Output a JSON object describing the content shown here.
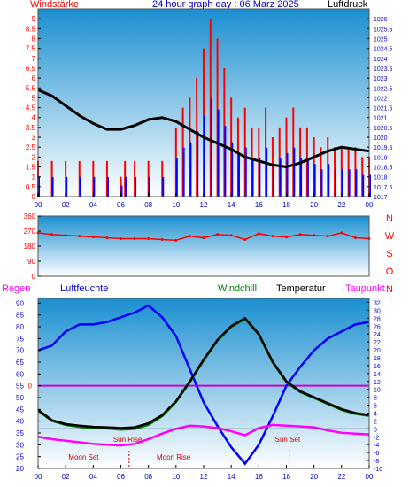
{
  "header": {
    "left": "Windstärke",
    "title": "24 hour graph day : 06 Marz 2025",
    "right": "Luftdruck"
  },
  "panel3_labels": {
    "regen": "Regen",
    "luftfeuchte": "Luftfeuchte",
    "windchill": "Windchill",
    "temperatur": "Temperatur",
    "taupunkt": "Taupunkt"
  },
  "annotations": {
    "sun_rise": "Sun Rise",
    "sun_set": "Sun Set",
    "moon_set": "Moon Set",
    "moon_rise": "Moon Rise",
    "regen_zero": "0"
  },
  "compass": [
    "N",
    "W",
    "S",
    "O",
    "N"
  ],
  "colors": {
    "wind_gust": "#ff0000",
    "wind_avg": "#0000ff",
    "pressure": "#000000",
    "wind_dir": "#ff0000",
    "humidity": "#0000ff",
    "temperature": "#000000",
    "windchill": "#008000",
    "dewpoint": "#ff00ff",
    "rain": "#cc00cc",
    "axis_text_left": "#ff0000",
    "axis_text_right": "#0000cc",
    "bg_top": "#1a8fd0",
    "bg_bottom": "#ffffff"
  },
  "chart_data": [
    {
      "type": "bar",
      "x_ticks": [
        "00",
        "02",
        "04",
        "06",
        "08",
        "10",
        "12",
        "14",
        "16",
        "18",
        "20",
        "22",
        "00"
      ],
      "y_left_ticks": [
        "0",
        "0.5",
        "1",
        "1.5",
        "2",
        "2.5",
        "3",
        "3.5",
        "4",
        "4.5",
        "5",
        "5.5",
        "6",
        "6.5",
        "7",
        "7.5",
        "8",
        "8.5",
        "9"
      ],
      "y_right_ticks": [
        "1017",
        "1017.5",
        "1018",
        "1018.5",
        "1019",
        "1019.5",
        "1020",
        "1020.5",
        "1021",
        "1021.5",
        "1022",
        "1022.5",
        "1023",
        "1023.5",
        "1024",
        "1024.5",
        "1025",
        "1025.5",
        "1026"
      ],
      "ylim_left": [
        0,
        9.5
      ],
      "ylim_right": [
        1017,
        1026.5
      ],
      "series": [
        {
          "name": "Windstärke",
          "axis": "left",
          "x": [
            0,
            1,
            2,
            3,
            4,
            5,
            6,
            6.3,
            7,
            8,
            9,
            10,
            10.5,
            11,
            11.5,
            12,
            12.5,
            13,
            13.5,
            14,
            14.5,
            15,
            15.5,
            16,
            16.5,
            17,
            17.5,
            18,
            18.5,
            19,
            19.5,
            20,
            20.5,
            21,
            21.5,
            22,
            22.5,
            23,
            23.5,
            24
          ],
          "values": [
            1.8,
            1.8,
            1.8,
            1.8,
            1.8,
            1.8,
            1.0,
            1.8,
            1.8,
            1.8,
            1.8,
            3.5,
            4.5,
            5.0,
            6.0,
            7.5,
            9.0,
            8.0,
            6.5,
            5.0,
            4.0,
            4.5,
            3.5,
            3.5,
            4.5,
            3.0,
            3.5,
            4.0,
            4.5,
            3.5,
            3.5,
            3.0,
            2.5,
            3.0,
            2.5,
            2.5,
            2.5,
            2.5,
            2.0,
            2.0
          ]
        },
        {
          "name": "Luftdruck",
          "axis": "right",
          "x": [
            0,
            1,
            2,
            3,
            4,
            5,
            6,
            7,
            8,
            9,
            10,
            11,
            12,
            13,
            14,
            15,
            16,
            17,
            18,
            19,
            20,
            21,
            22,
            23,
            24
          ],
          "values": [
            1022.4,
            1022.1,
            1021.6,
            1021.1,
            1020.7,
            1020.4,
            1020.4,
            1020.6,
            1020.9,
            1021.0,
            1020.8,
            1020.4,
            1020.0,
            1019.7,
            1019.4,
            1019.0,
            1018.8,
            1018.6,
            1018.5,
            1018.7,
            1019.0,
            1019.3,
            1019.5,
            1019.4,
            1019.3
          ]
        }
      ]
    },
    {
      "type": "scatter",
      "x_ticks": [],
      "y_ticks": [
        "0",
        "90",
        "180",
        "270",
        "360"
      ],
      "ylim": [
        0,
        360
      ],
      "series": [
        {
          "name": "Windrichtung",
          "x": [
            0,
            1,
            2,
            3,
            4,
            5,
            6,
            7,
            8,
            9,
            10,
            11,
            12,
            13,
            14,
            15,
            16,
            17,
            18,
            19,
            20,
            21,
            22,
            23,
            24
          ],
          "values": [
            260,
            250,
            245,
            240,
            235,
            230,
            225,
            225,
            225,
            220,
            215,
            240,
            230,
            250,
            245,
            220,
            255,
            240,
            235,
            250,
            245,
            240,
            260,
            230,
            225
          ]
        }
      ]
    },
    {
      "type": "line",
      "x_ticks": [
        "00",
        "02",
        "04",
        "06",
        "08",
        "10",
        "12",
        "14",
        "16",
        "18",
        "20",
        "22",
        "00"
      ],
      "y_left_ticks": [
        "20",
        "25",
        "30",
        "35",
        "40",
        "45",
        "50",
        "55",
        "60",
        "65",
        "70",
        "75",
        "80",
        "85",
        "90"
      ],
      "y_right_ticks": [
        "-10",
        "-8",
        "-6",
        "-4",
        "-2",
        "0",
        "2",
        "4",
        "6",
        "8",
        "10",
        "12",
        "14",
        "16",
        "18",
        "20",
        "22",
        "24",
        "26",
        "28",
        "30",
        "32"
      ],
      "ylim_left": [
        20,
        92
      ],
      "ylim_right": [
        -10,
        33
      ],
      "series": [
        {
          "name": "Luftfeuchte",
          "axis": "left",
          "x": [
            0,
            1,
            2,
            3,
            4,
            5,
            6,
            7,
            8,
            9,
            10,
            11,
            12,
            13,
            14,
            15,
            16,
            17,
            18,
            19,
            20,
            21,
            22,
            23,
            24
          ],
          "values": [
            70,
            72,
            78,
            81,
            81,
            82,
            84,
            86,
            89,
            84,
            76,
            62,
            48,
            38,
            29,
            22,
            30,
            42,
            55,
            63,
            70,
            75,
            78,
            81,
            82
          ]
        },
        {
          "name": "Temperatur",
          "axis": "right",
          "x": [
            0,
            1,
            2,
            3,
            4,
            5,
            6,
            7,
            8,
            9,
            10,
            11,
            12,
            13,
            14,
            15,
            16,
            17,
            18,
            19,
            20,
            21,
            22,
            23,
            24
          ],
          "values": [
            4.8,
            2.2,
            1.2,
            0.8,
            0.5,
            0.4,
            0.2,
            0.4,
            1.4,
            3.5,
            7.0,
            12.0,
            17.5,
            22.5,
            26.0,
            28.0,
            24.0,
            17.0,
            12.0,
            9.5,
            8.0,
            6.5,
            5.0,
            4.0,
            3.5
          ]
        },
        {
          "name": "Windchill",
          "axis": "right",
          "x": [
            0,
            1,
            2,
            3,
            4,
            5,
            6,
            7,
            8,
            9,
            10,
            11,
            12,
            13,
            14,
            15,
            16,
            17,
            18,
            19,
            20,
            21,
            22,
            23,
            24
          ],
          "values": [
            4.6,
            2.0,
            1.0,
            0.5,
            0.2,
            0.1,
            -0.2,
            0.0,
            1.0,
            3.2,
            6.8,
            11.8,
            17.3,
            22.3,
            25.8,
            27.8,
            23.8,
            16.8,
            11.8,
            9.3,
            7.8,
            6.3,
            4.8,
            3.8,
            3.3
          ]
        },
        {
          "name": "Taupunkt",
          "axis": "right",
          "x": [
            0,
            1,
            2,
            3,
            4,
            5,
            6,
            7,
            8,
            9,
            10,
            11,
            12,
            13,
            14,
            15,
            16,
            17,
            18,
            19,
            20,
            21,
            22,
            23,
            24
          ],
          "values": [
            -2.0,
            -2.6,
            -3.0,
            -3.4,
            -3.8,
            -4.0,
            -4.2,
            -3.8,
            -2.6,
            -1.2,
            0.0,
            0.8,
            0.6,
            0.2,
            -0.6,
            -1.6,
            0.2,
            1.0,
            0.8,
            0.6,
            0.4,
            -0.4,
            -1.0,
            -1.2,
            -1.4
          ]
        },
        {
          "name": "Regen",
          "axis": "left",
          "x": [
            0,
            24
          ],
          "values": [
            55,
            55
          ]
        }
      ]
    }
  ]
}
